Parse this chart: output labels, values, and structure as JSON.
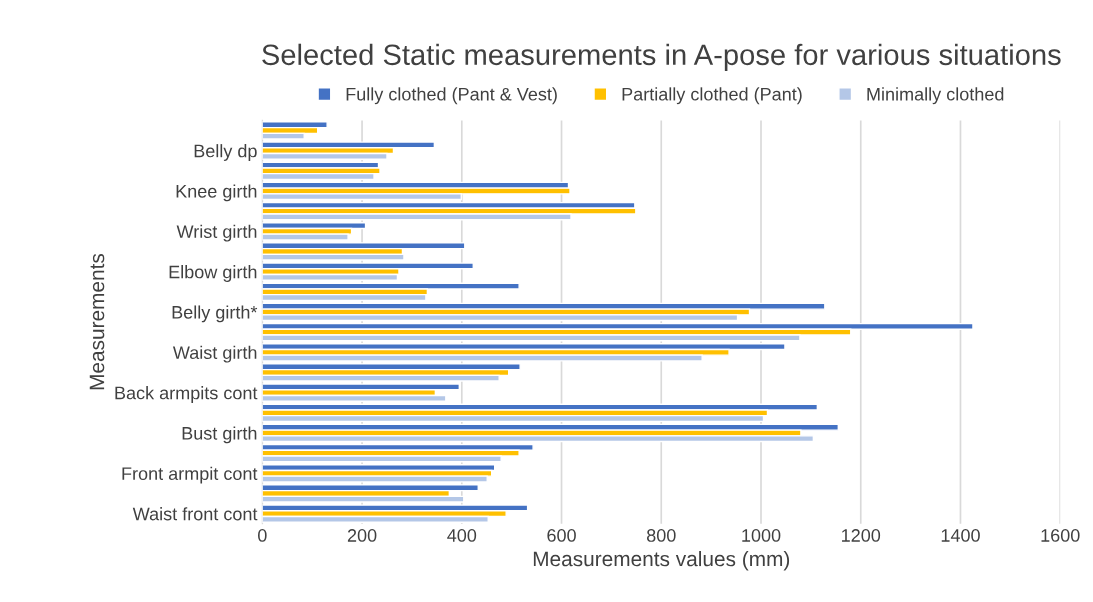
{
  "chart_data": {
    "type": "bar",
    "orientation": "horizontal",
    "title": "Selected Static measurements in A-pose for various situations",
    "xlabel": "Measurements values (mm)",
    "ylabel": "Measurements",
    "categories": [
      null,
      "Belly dp",
      null,
      "Knee girth",
      null,
      "Wrist girth",
      null,
      "Elbow girth",
      null,
      "Belly girth*",
      null,
      "Waist girth",
      null,
      "Back armpits cont",
      null,
      "Bust girth",
      null,
      "Front armpit cont",
      null,
      "Waist front cont"
    ],
    "series": [
      {
        "name": "Fully clothed (Pant & Vest)",
        "color": "#4472c4",
        "values": [
          130,
          345,
          233,
          614,
          747,
          207,
          406,
          423,
          515,
          1128,
          1425,
          1048,
          517,
          395,
          1113,
          1155,
          543,
          466,
          433,
          532
        ]
      },
      {
        "name": "Partially clothed (Pant)",
        "color": "#ffc000",
        "values": [
          111,
          263,
          236,
          617,
          749,
          179,
          281,
          274,
          331,
          977,
          1180,
          936,
          494,
          347,
          1013,
          1080,
          515,
          460,
          375,
          489
        ]
      },
      {
        "name": "Minimally clothed",
        "color": "#b4c7e7",
        "values": [
          84,
          250,
          224,
          399,
          619,
          172,
          284,
          271,
          328,
          953,
          1078,
          882,
          475,
          368,
          1005,
          1105,
          479,
          451,
          404,
          453
        ]
      }
    ],
    "xlim": [
      0,
      1600
    ],
    "xticks": [
      0,
      200,
      400,
      600,
      800,
      1000,
      1200,
      1400,
      1600
    ],
    "grid": "x",
    "legend": "top"
  }
}
